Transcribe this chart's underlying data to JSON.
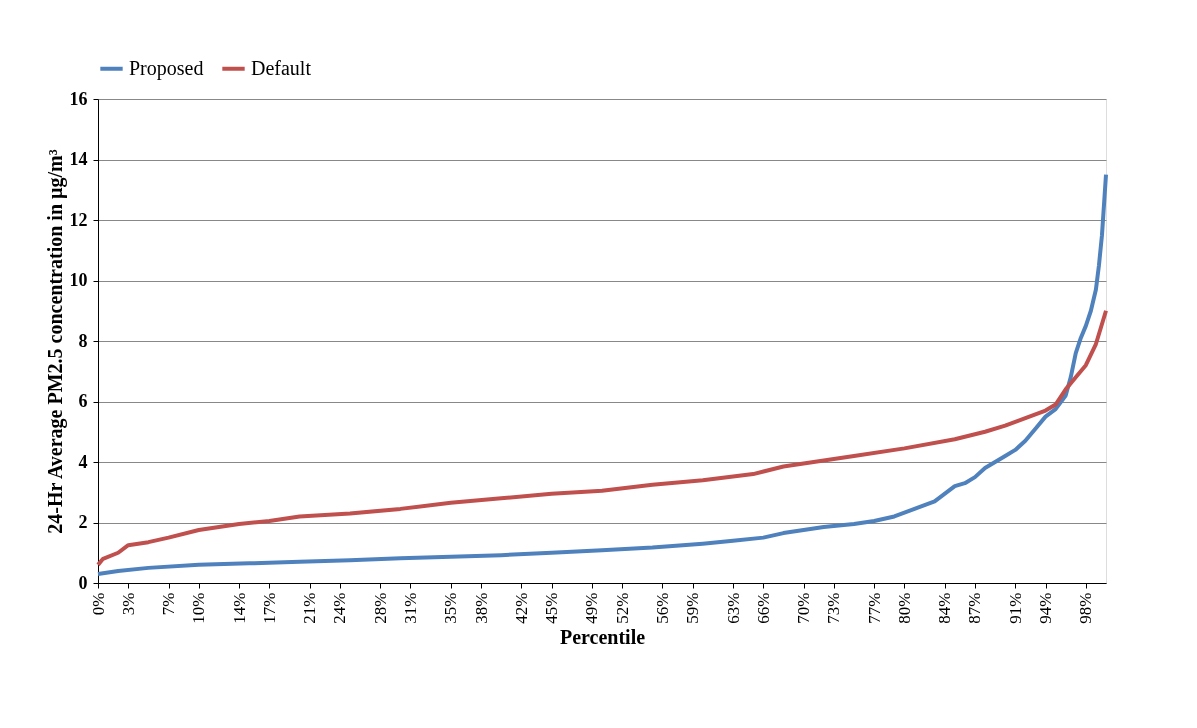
{
  "chart_data": {
    "type": "line",
    "xlabel": "Percentile",
    "ylabel": "24-Hr Average PM2.5 concentration in µg/m³",
    "xlim": [
      0,
      100
    ],
    "xticks": [
      {
        "value": 0,
        "label": "0%"
      },
      {
        "value": 3,
        "label": "3%"
      },
      {
        "value": 7,
        "label": "7%"
      },
      {
        "value": 10,
        "label": "10%"
      },
      {
        "value": 14,
        "label": "14%"
      },
      {
        "value": 17,
        "label": "17%"
      },
      {
        "value": 21,
        "label": "21%"
      },
      {
        "value": 24,
        "label": "24%"
      },
      {
        "value": 28,
        "label": "28%"
      },
      {
        "value": 31,
        "label": "31%"
      },
      {
        "value": 35,
        "label": "35%"
      },
      {
        "value": 38,
        "label": "38%"
      },
      {
        "value": 42,
        "label": "42%"
      },
      {
        "value": 45,
        "label": "45%"
      },
      {
        "value": 49,
        "label": "49%"
      },
      {
        "value": 52,
        "label": "52%"
      },
      {
        "value": 56,
        "label": "56%"
      },
      {
        "value": 59,
        "label": "59%"
      },
      {
        "value": 63,
        "label": "63%"
      },
      {
        "value": 66,
        "label": "66%"
      },
      {
        "value": 70,
        "label": "70%"
      },
      {
        "value": 73,
        "label": "73%"
      },
      {
        "value": 77,
        "label": "77%"
      },
      {
        "value": 80,
        "label": "80%"
      },
      {
        "value": 84,
        "label": "84%"
      },
      {
        "value": 87,
        "label": "87%"
      },
      {
        "value": 91,
        "label": "91%"
      },
      {
        "value": 94,
        "label": "94%"
      },
      {
        "value": 98,
        "label": "98%"
      }
    ],
    "ylim": [
      0,
      16
    ],
    "yticks": [
      0,
      2,
      4,
      6,
      8,
      10,
      12,
      14,
      16
    ],
    "grid": "y",
    "legend": "top",
    "line_style": "solid",
    "marker": "none",
    "series": [
      {
        "name": "Proposed",
        "color": "#4f81bd",
        "x": [
          0,
          2,
          5,
          10,
          15,
          20,
          25,
          30,
          35,
          40,
          45,
          50,
          55,
          60,
          63,
          66,
          68,
          70,
          72,
          75,
          77,
          79,
          81,
          83,
          85,
          86,
          87,
          88,
          89,
          90,
          91,
          92,
          93,
          94,
          95,
          96,
          96.5,
          97,
          97.5,
          98,
          98.5,
          99,
          99.3,
          99.6,
          100
        ],
        "values": [
          0.3,
          0.4,
          0.5,
          0.6,
          0.65,
          0.7,
          0.75,
          0.82,
          0.87,
          0.92,
          1.0,
          1.08,
          1.17,
          1.3,
          1.4,
          1.5,
          1.65,
          1.75,
          1.85,
          1.95,
          2.05,
          2.2,
          2.45,
          2.7,
          3.2,
          3.3,
          3.5,
          3.8,
          4.0,
          4.2,
          4.4,
          4.7,
          5.1,
          5.5,
          5.75,
          6.2,
          6.8,
          7.6,
          8.1,
          8.5,
          9.0,
          9.7,
          10.5,
          11.5,
          13.5
        ]
      },
      {
        "name": "Default",
        "color": "#c0504d",
        "x": [
          0,
          0.5,
          2,
          3,
          5,
          7,
          10,
          14,
          17,
          20,
          25,
          30,
          35,
          40,
          45,
          50,
          55,
          60,
          65,
          68,
          70,
          75,
          80,
          85,
          88,
          90,
          92,
          94,
          95,
          96,
          97,
          98,
          99,
          100
        ],
        "values": [
          0.6,
          0.8,
          1.0,
          1.25,
          1.35,
          1.5,
          1.75,
          1.95,
          2.05,
          2.2,
          2.3,
          2.45,
          2.65,
          2.8,
          2.95,
          3.05,
          3.25,
          3.4,
          3.6,
          3.85,
          3.95,
          4.2,
          4.45,
          4.75,
          5.0,
          5.2,
          5.45,
          5.7,
          5.9,
          6.4,
          6.8,
          7.2,
          7.9,
          9.0
        ]
      }
    ]
  }
}
